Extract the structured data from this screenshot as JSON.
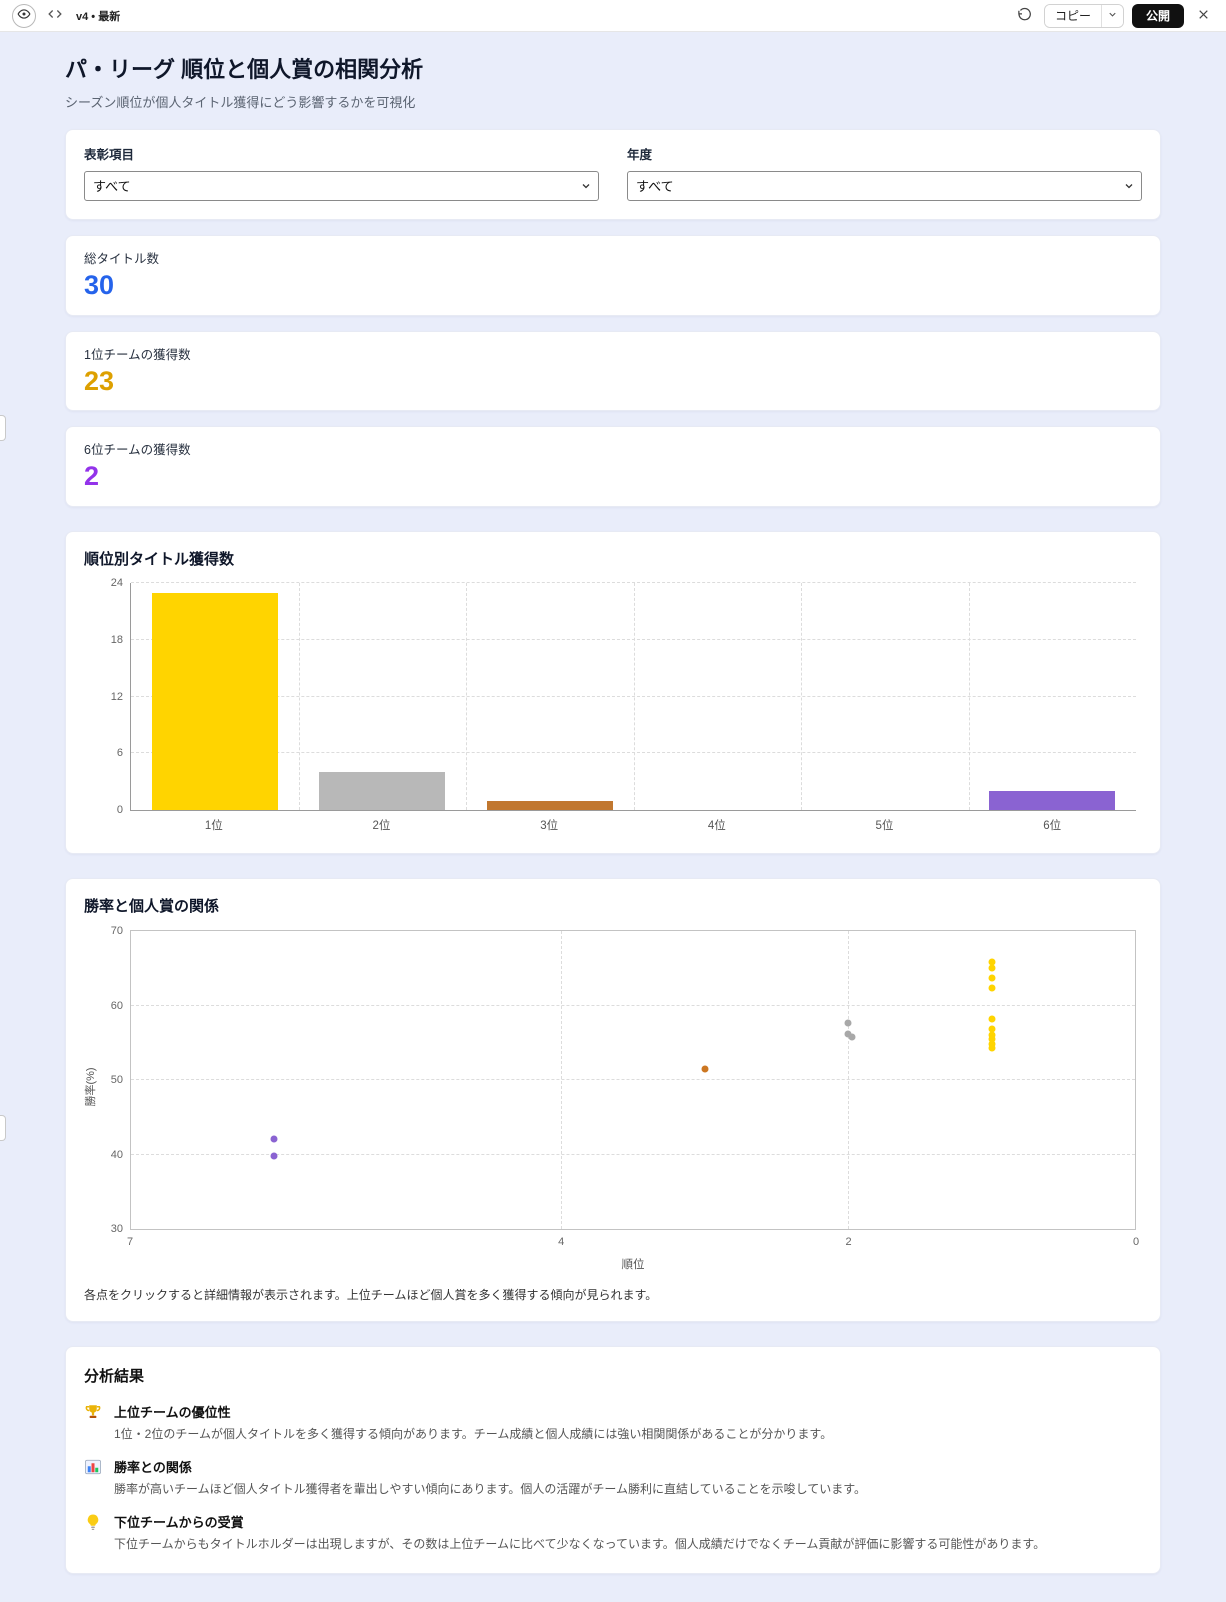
{
  "topbar": {
    "version_label": "v4 • 最新",
    "copy_label": "コピー",
    "publish_label": "公開",
    "icons": [
      "eye-icon",
      "code-icon",
      "refresh-icon",
      "chevron-down-icon",
      "close-icon"
    ]
  },
  "page": {
    "title": "パ・リーグ 順位と個人賞の相関分析",
    "subtitle": "シーズン順位が個人タイトル獲得にどう影響するかを可視化"
  },
  "filters": {
    "award_label": "表彰項目",
    "award_value": "すべて",
    "year_label": "年度",
    "year_value": "すべて"
  },
  "stats": [
    {
      "label": "総タイトル数",
      "value": "30",
      "color": "#2563eb"
    },
    {
      "label": "1位チームの獲得数",
      "value": "23",
      "color": "#dda000"
    },
    {
      "label": "6位チームの獲得数",
      "value": "2",
      "color": "#9333ea"
    }
  ],
  "chart_data": [
    {
      "type": "bar",
      "title": "順位別タイトル獲得数",
      "categories": [
        "1位",
        "2位",
        "3位",
        "4位",
        "5位",
        "6位"
      ],
      "values": [
        23,
        4,
        1,
        0,
        0,
        2
      ],
      "colors": [
        "#ffd400",
        "#b8b8b8",
        "#c1772f",
        "#b8b8b8",
        "#b8b8b8",
        "#8a63d2"
      ],
      "xlabel": "",
      "ylabel": "",
      "ylim": [
        0,
        24
      ],
      "yticks": [
        0,
        6,
        12,
        18,
        24
      ],
      "grid": true
    },
    {
      "type": "scatter",
      "title": "勝率と個人賞の関係",
      "xlabel": "順位",
      "ylabel": "勝率(%)",
      "xlim": [
        7,
        0
      ],
      "ylim": [
        30,
        70
      ],
      "xticks": [
        7,
        4,
        2,
        0
      ],
      "yticks": [
        30,
        40,
        50,
        60,
        70
      ],
      "grid": true,
      "series": [
        {
          "name": "1位",
          "color": "#ffd400",
          "points": [
            [
              1,
              65.9
            ],
            [
              1,
              65.0
            ],
            [
              1,
              63.7
            ],
            [
              1,
              62.4
            ],
            [
              1,
              58.2
            ],
            [
              1,
              56.9
            ],
            [
              1,
              56.1
            ],
            [
              1,
              55.5
            ],
            [
              1,
              54.9
            ],
            [
              1,
              54.3
            ]
          ]
        },
        {
          "name": "2位",
          "color": "#a8a8a8",
          "points": [
            [
              2,
              57.7
            ],
            [
              2,
              56.2
            ],
            [
              1.97,
              55.8
            ]
          ]
        },
        {
          "name": "3位",
          "color": "#cc7722",
          "points": [
            [
              3,
              51.5
            ]
          ]
        },
        {
          "name": "6位",
          "color": "#8a63d2",
          "points": [
            [
              6,
              42.1
            ],
            [
              6,
              39.8
            ]
          ]
        }
      ],
      "caption": "各点をクリックすると詳細情報が表示されます。上位チームほど個人賞を多く獲得する傾向が見られます。"
    }
  ],
  "analysis": {
    "title": "分析結果",
    "items": [
      {
        "icon": "trophy-icon",
        "heading": "上位チームの優位性",
        "text": "1位・2位のチームが個人タイトルを多く獲得する傾向があります。チーム成績と個人成績には強い相関関係があることが分かります。"
      },
      {
        "icon": "bar-chart-icon",
        "heading": "勝率との関係",
        "text": "勝率が高いチームほど個人タイトル獲得者を輩出しやすい傾向にあります。個人の活躍がチーム勝利に直結していることを示唆しています。"
      },
      {
        "icon": "lightbulb-icon",
        "heading": "下位チームからの受賞",
        "text": "下位チームからもタイトルホルダーは出現しますが、その数は上位チームに比べて少なくなっています。個人成績だけでなくチーム貢献が評価に影響する可能性があります。"
      }
    ]
  }
}
